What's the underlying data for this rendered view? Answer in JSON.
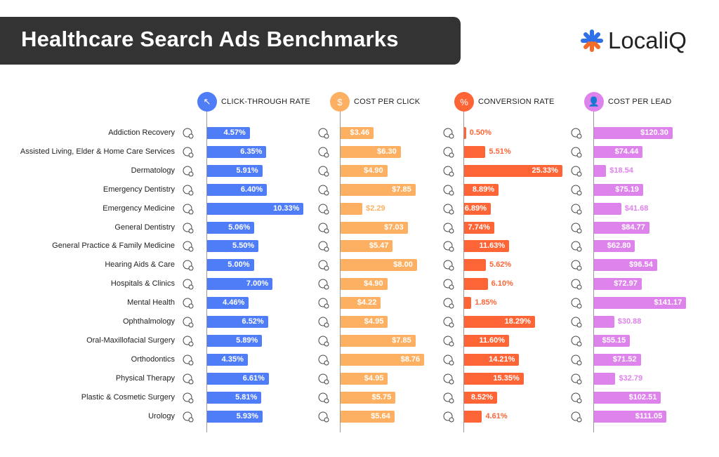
{
  "title": "Healthcare Search Ads Benchmarks",
  "logo": {
    "text": "LocaliQ",
    "colors": [
      "#2f6fe8",
      "#f26c2c"
    ]
  },
  "chart_data": {
    "type": "bar",
    "orientation": "horizontal",
    "categories": [
      "Addiction Recovery",
      "Assisted Living, Elder & Home Care Services",
      "Dermatology",
      "Emergency Dentistry",
      "Emergency Medicine",
      "General Dentistry",
      "General Practice & Family Medicine",
      "Hearing Aids & Care",
      "Hospitals & Clinics",
      "Mental Health",
      "Ophthalmology",
      "Oral-Maxillofacial Surgery",
      "Orthodontics",
      "Physical Therapy",
      "Plastic & Cosmetic Surgery",
      "Urology"
    ],
    "icons": [
      "syringe-icon",
      "care-hands-icon",
      "face-icon",
      "tooth-cross-icon",
      "pill-bottle-icon",
      "tooth-icon",
      "heart-hand-icon",
      "ear-icon",
      "hospital-icon",
      "head-heart-icon",
      "eye-icon",
      "scalpel-icon",
      "braces-icon",
      "arm-icon",
      "syringe-icon",
      "kidney-icon"
    ],
    "series": [
      {
        "name": "CLICK-THROUGH RATE",
        "key": "ctr",
        "color": "#4f7cf7",
        "icon": "cursor-icon",
        "values": [
          4.57,
          6.35,
          5.91,
          6.4,
          10.33,
          5.06,
          5.5,
          5.0,
          7.0,
          4.46,
          6.52,
          5.89,
          4.35,
          6.61,
          5.81,
          5.93
        ],
        "labels": [
          "4.57%",
          "6.35%",
          "5.91%",
          "6.40%",
          "10.33%",
          "5.06%",
          "5.50%",
          "5.00%",
          "7.00%",
          "4.46%",
          "6.52%",
          "5.89%",
          "4.35%",
          "6.61%",
          "5.81%",
          "5.93%"
        ]
      },
      {
        "name": "COST PER CLICK",
        "key": "cpc",
        "color": "#fdb062",
        "icon": "cursor-dollar-icon",
        "values": [
          3.46,
          6.3,
          4.9,
          7.85,
          2.29,
          7.03,
          5.47,
          8.0,
          4.9,
          4.22,
          4.95,
          7.85,
          8.76,
          4.95,
          5.75,
          5.64
        ],
        "labels": [
          "$3.46",
          "$6.30",
          "$4.90",
          "$7.85",
          "$2.29",
          "$7.03",
          "$5.47",
          "$8.00",
          "$4.90",
          "$4.22",
          "$4.95",
          "$7.85",
          "$8.76",
          "$4.95",
          "$5.75",
          "$5.64"
        ]
      },
      {
        "name": "CONVERSION RATE",
        "key": "cvr",
        "color": "#fd6537",
        "icon": "percent-icon",
        "values": [
          0.5,
          5.51,
          25.33,
          8.89,
          6.89,
          7.74,
          11.63,
          5.62,
          6.1,
          1.85,
          18.29,
          11.6,
          14.21,
          15.35,
          8.52,
          4.61
        ],
        "labels": [
          "0.50%",
          "5.51%",
          "25.33%",
          "8.89%",
          "6.89%",
          "7.74%",
          "11.63%",
          "5.62%",
          "6.10%",
          "1.85%",
          "18.29%",
          "11.60%",
          "14.21%",
          "15.35%",
          "8.52%",
          "4.61%"
        ]
      },
      {
        "name": "COST PER LEAD",
        "key": "cpl",
        "color": "#df83ec",
        "icon": "user-dollar-icon",
        "values": [
          120.3,
          74.44,
          18.54,
          75.19,
          41.68,
          84.77,
          62.8,
          96.54,
          72.97,
          141.17,
          30.88,
          55.15,
          71.52,
          32.79,
          102.51,
          111.05
        ],
        "labels": [
          "$120.30",
          "$74.44",
          "$18.54",
          "$75.19",
          "$41.68",
          "$84.77",
          "$62.80",
          "$96.54",
          "$72.97",
          "$141.17",
          "$30.88",
          "$55.15",
          "$71.52",
          "$32.79",
          "$102.51",
          "$111.05"
        ]
      }
    ]
  }
}
